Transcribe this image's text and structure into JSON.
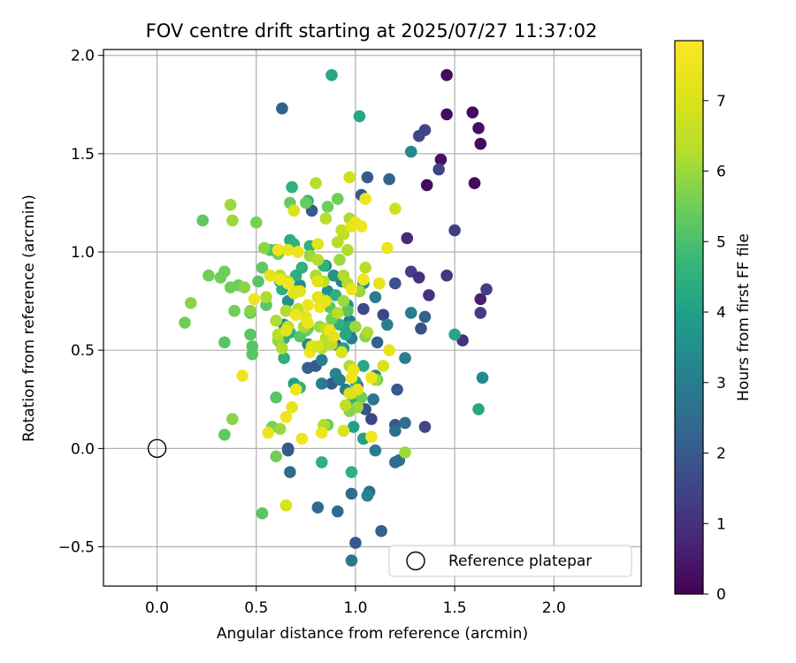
{
  "chart_data": {
    "type": "scatter",
    "title": "FOV centre drift starting at 2025/07/27 11:37:02",
    "xlabel": "Angular distance from reference (arcmin)",
    "ylabel": "Rotation from reference (arcmin)",
    "xlim": [
      -0.27,
      2.44
    ],
    "ylim": [
      -0.7,
      2.03
    ],
    "x_ticks": [
      0.0,
      0.5,
      1.0,
      1.5,
      2.0
    ],
    "x_tick_labels": [
      "0.0",
      "0.5",
      "1.0",
      "1.5",
      "2.0"
    ],
    "y_ticks": [
      -0.5,
      0.0,
      0.5,
      1.0,
      1.5,
      2.0
    ],
    "y_tick_labels": [
      "−0.5",
      "0.0",
      "0.5",
      "1.0",
      "1.5",
      "2.0"
    ],
    "grid": true,
    "colormap": "viridis",
    "colorbar": {
      "label": "Hours from first FF file",
      "min": 0,
      "max": 7.85,
      "ticks": [
        0,
        1,
        2,
        3,
        4,
        5,
        6,
        7
      ],
      "tick_labels": [
        "0",
        "1",
        "2",
        "3",
        "4",
        "5",
        "6",
        "7"
      ]
    },
    "legend": {
      "placement": "lower-right",
      "entries": [
        "Reference platepar"
      ]
    },
    "reference_point": {
      "x": 0.0,
      "y": 0.0
    },
    "points": [
      [
        1.46,
        1.9,
        0.2
      ],
      [
        1.59,
        1.71,
        0.2
      ],
      [
        1.46,
        1.7,
        0.2
      ],
      [
        1.62,
        1.63,
        0.3
      ],
      [
        1.63,
        1.55,
        0.2
      ],
      [
        1.43,
        1.47,
        0.3
      ],
      [
        1.36,
        1.34,
        0.2
      ],
      [
        1.6,
        1.35,
        0.2
      ],
      [
        1.42,
        1.42,
        1.5
      ],
      [
        1.35,
        1.62,
        1.5
      ],
      [
        1.32,
        1.59,
        1.5
      ],
      [
        1.5,
        1.11,
        1.3
      ],
      [
        1.26,
        1.07,
        0.8
      ],
      [
        1.28,
        0.9,
        1.3
      ],
      [
        1.46,
        0.88,
        1.2
      ],
      [
        1.32,
        0.87,
        1.0
      ],
      [
        1.63,
        0.76,
        0.6
      ],
      [
        1.66,
        0.81,
        1.3
      ],
      [
        1.37,
        0.78,
        1.0
      ],
      [
        1.63,
        0.69,
        1.3
      ],
      [
        1.35,
        0.67,
        2.2
      ],
      [
        1.33,
        0.61,
        1.8
      ],
      [
        1.54,
        0.55,
        1.0
      ],
      [
        1.35,
        0.11,
        1.5
      ],
      [
        0.63,
        1.73,
        2.2
      ],
      [
        1.06,
        1.38,
        2.0
      ],
      [
        1.17,
        1.37,
        2.2
      ],
      [
        1.03,
        1.29,
        2.0
      ],
      [
        0.78,
        1.21,
        2.0
      ],
      [
        1.2,
        0.84,
        1.8
      ],
      [
        1.14,
        0.68,
        1.5
      ],
      [
        1.04,
        0.71,
        1.6
      ],
      [
        0.98,
        0.61,
        2.0
      ],
      [
        1.11,
        0.54,
        2.2
      ],
      [
        0.9,
        0.53,
        2.0
      ],
      [
        0.76,
        0.41,
        2.2
      ],
      [
        0.8,
        0.42,
        2.0
      ],
      [
        0.88,
        0.33,
        2.0
      ],
      [
        1.01,
        0.32,
        1.9
      ],
      [
        1.21,
        0.3,
        2.0
      ],
      [
        1.05,
        0.2,
        1.8
      ],
      [
        1.08,
        0.15,
        1.5
      ],
      [
        1.2,
        0.12,
        2.0
      ],
      [
        1.2,
        0.09,
        2.5
      ],
      [
        0.66,
        0.0,
        2.0
      ],
      [
        0.66,
        -0.01,
        2.0
      ],
      [
        1.04,
        0.05,
        2.5
      ],
      [
        0.81,
        -0.3,
        2.5
      ],
      [
        0.91,
        -0.32,
        2.5
      ],
      [
        0.98,
        -0.23,
        2.5
      ],
      [
        1.07,
        -0.22,
        2.5
      ],
      [
        1.0,
        -0.48,
        2.0
      ],
      [
        1.13,
        -0.42,
        2.2
      ],
      [
        0.98,
        -0.57,
        2.8
      ],
      [
        0.67,
        -0.12,
        2.5
      ],
      [
        1.2,
        -0.07,
        2.5
      ],
      [
        1.22,
        -0.06,
        2.5
      ],
      [
        1.28,
        1.51,
        3.3
      ],
      [
        1.28,
        0.69,
        3.0
      ],
      [
        1.25,
        0.46,
        3.0
      ],
      [
        1.64,
        0.36,
        3.3
      ],
      [
        1.16,
        0.63,
        3.0
      ],
      [
        1.1,
        0.77,
        3.0
      ],
      [
        1.02,
        0.8,
        3.2
      ],
      [
        0.93,
        0.85,
        3.0
      ],
      [
        0.85,
        0.93,
        3.2
      ],
      [
        0.97,
        0.65,
        3.0
      ],
      [
        0.98,
        0.56,
        3.0
      ],
      [
        0.83,
        0.45,
        3.0
      ],
      [
        0.9,
        0.38,
        3.2
      ],
      [
        0.92,
        0.35,
        3.0
      ],
      [
        0.83,
        0.33,
        3.0
      ],
      [
        0.95,
        0.3,
        3.0
      ],
      [
        1.1,
        0.37,
        3.0
      ],
      [
        1.09,
        0.25,
        2.8
      ],
      [
        1.25,
        0.13,
        2.6
      ],
      [
        1.06,
        -0.24,
        3.2
      ],
      [
        1.1,
        -0.01,
        3.0
      ],
      [
        0.76,
        0.53,
        3.5
      ],
      [
        0.64,
        0.63,
        3.5
      ],
      [
        0.72,
        0.83,
        3.5
      ],
      [
        0.62,
        0.85,
        3.5
      ],
      [
        0.66,
        0.75,
        3.6
      ],
      [
        0.77,
        0.51,
        3.2
      ],
      [
        0.86,
        0.8,
        3.5
      ],
      [
        0.89,
        0.88,
        3.6
      ],
      [
        0.96,
        0.73,
        3.5
      ],
      [
        1.04,
        0.84,
        3.5
      ],
      [
        0.88,
        1.9,
        4.2
      ],
      [
        1.02,
        1.69,
        4.2
      ],
      [
        1.5,
        0.58,
        4.2
      ],
      [
        1.62,
        0.2,
        4.2
      ],
      [
        0.68,
        1.33,
        4.5
      ],
      [
        0.76,
        1.26,
        4.6
      ],
      [
        0.67,
        1.06,
        4.4
      ],
      [
        0.69,
        1.04,
        4.5
      ],
      [
        0.77,
        1.03,
        4.5
      ],
      [
        0.6,
        1.01,
        4.5
      ],
      [
        0.84,
        0.93,
        4.5
      ],
      [
        0.73,
        0.92,
        4.5
      ],
      [
        0.7,
        0.88,
        4.4
      ],
      [
        0.63,
        0.81,
        4.5
      ],
      [
        0.64,
        0.56,
        4.5
      ],
      [
        0.62,
        0.54,
        4.5
      ],
      [
        0.67,
        0.59,
        4.5
      ],
      [
        0.64,
        0.46,
        4.5
      ],
      [
        0.92,
        0.63,
        4.5
      ],
      [
        0.97,
        0.62,
        4.2
      ],
      [
        0.95,
        0.58,
        4.2
      ],
      [
        0.94,
        0.51,
        4.0
      ],
      [
        1.04,
        0.42,
        4.2
      ],
      [
        1.0,
        0.34,
        4.0
      ],
      [
        0.69,
        0.33,
        4.0
      ],
      [
        0.72,
        0.31,
        4.5
      ],
      [
        0.98,
        0.23,
        4.5
      ],
      [
        0.99,
        0.11,
        4.0
      ],
      [
        1.04,
        0.05,
        4.0
      ],
      [
        0.98,
        -0.12,
        4.5
      ],
      [
        0.83,
        -0.07,
        4.5
      ],
      [
        0.84,
        0.76,
        4.5
      ],
      [
        0.9,
        0.78,
        4.5
      ],
      [
        0.53,
        -0.33,
        5.2
      ],
      [
        0.23,
        1.16,
        5.3
      ],
      [
        0.67,
        1.25,
        5.4
      ],
      [
        0.75,
        1.25,
        5.4
      ],
      [
        0.86,
        1.23,
        5.5
      ],
      [
        0.91,
        1.27,
        5.5
      ],
      [
        0.57,
        1.01,
        5.0
      ],
      [
        0.61,
        0.99,
        5.5
      ],
      [
        0.6,
        1.01,
        5.0
      ],
      [
        0.53,
        0.92,
        5.3
      ],
      [
        0.5,
        1.15,
        5.6
      ],
      [
        0.51,
        0.85,
        5.2
      ],
      [
        0.55,
        0.73,
        5.2
      ],
      [
        0.47,
        0.69,
        5.2
      ],
      [
        0.39,
        0.7,
        5.5
      ],
      [
        0.34,
        0.54,
        5.2
      ],
      [
        0.47,
        0.58,
        5.2
      ],
      [
        0.48,
        0.52,
        5.2
      ],
      [
        0.48,
        0.48,
        5.2
      ],
      [
        0.6,
        0.26,
        5.2
      ],
      [
        0.34,
        0.07,
        5.3
      ],
      [
        0.58,
        0.11,
        5.6
      ],
      [
        0.6,
        -0.04,
        5.5
      ],
      [
        0.14,
        0.64,
        5.5
      ],
      [
        0.26,
        0.88,
        5.5
      ],
      [
        0.37,
        0.82,
        5.5
      ],
      [
        0.32,
        0.87,
        5.5
      ],
      [
        0.34,
        0.9,
        5.5
      ],
      [
        0.41,
        0.83,
        5.5
      ],
      [
        0.44,
        0.82,
        5.8
      ],
      [
        0.72,
        0.57,
        5.2
      ],
      [
        0.75,
        0.6,
        5.3
      ],
      [
        0.83,
        0.52,
        5.3
      ],
      [
        0.76,
        0.61,
        5.5
      ],
      [
        0.87,
        0.72,
        5.2
      ],
      [
        0.88,
        0.66,
        5.5
      ],
      [
        0.96,
        0.7,
        5.2
      ],
      [
        1.05,
        0.57,
        5.8
      ],
      [
        1.03,
        0.26,
        5.5
      ],
      [
        1.11,
        0.35,
        5.5
      ],
      [
        1.01,
        0.21,
        6.0
      ],
      [
        0.86,
        0.12,
        5.5
      ],
      [
        0.97,
        0.19,
        5.8
      ],
      [
        1.25,
        -0.02,
        6.0
      ],
      [
        0.37,
        1.24,
        6.0
      ],
      [
        0.38,
        1.16,
        6.0
      ],
      [
        0.54,
        1.02,
        5.8
      ],
      [
        0.61,
        0.55,
        6.0
      ],
      [
        0.63,
        0.51,
        6.2
      ],
      [
        0.65,
        0.7,
        6.2
      ],
      [
        0.74,
        0.62,
        6.2
      ],
      [
        0.8,
        1.35,
        6.3
      ],
      [
        0.85,
        1.17,
        6.3
      ],
      [
        0.97,
        1.17,
        6.2
      ],
      [
        0.93,
        1.11,
        6.5
      ],
      [
        0.94,
        1.09,
        6.5
      ],
      [
        0.96,
        1.01,
        6.2
      ],
      [
        0.91,
        1.05,
        6.3
      ],
      [
        0.92,
        0.96,
        6.0
      ],
      [
        0.77,
        0.98,
        6.0
      ],
      [
        0.81,
        0.96,
        6.3
      ],
      [
        0.8,
        0.88,
        6.2
      ],
      [
        0.94,
        0.88,
        6.2
      ],
      [
        0.84,
        0.85,
        6.5
      ],
      [
        0.96,
        0.84,
        6.3
      ],
      [
        1.05,
        0.92,
        6.3
      ],
      [
        0.94,
        0.75,
        6.0
      ],
      [
        1.02,
        0.8,
        6.0
      ],
      [
        0.91,
        0.69,
        6.3
      ],
      [
        0.86,
        0.6,
        6.3
      ],
      [
        0.82,
        0.62,
        6.0
      ],
      [
        1.0,
        0.62,
        6.0
      ],
      [
        0.85,
        0.56,
        6.3
      ],
      [
        0.61,
        0.58,
        6.3
      ],
      [
        0.66,
        0.62,
        6.5
      ],
      [
        0.6,
        0.65,
        6.2
      ],
      [
        0.71,
        0.71,
        6.3
      ],
      [
        0.7,
        0.8,
        6.3
      ],
      [
        0.55,
        0.77,
        6.2
      ],
      [
        0.66,
        0.85,
        6.5
      ],
      [
        0.62,
        0.88,
        6.3
      ],
      [
        0.71,
        1.0,
        6.3
      ],
      [
        0.17,
        0.74,
        5.8
      ],
      [
        0.47,
        0.7,
        5.8
      ],
      [
        0.38,
        0.15,
        5.8
      ],
      [
        0.83,
        0.51,
        6.3
      ],
      [
        0.88,
        0.53,
        6.5
      ],
      [
        0.85,
        0.61,
        6.5
      ],
      [
        0.98,
        0.28,
        6.5
      ],
      [
        0.84,
        0.12,
        6.2
      ],
      [
        0.95,
        0.22,
        6.5
      ],
      [
        1.06,
        0.59,
        6.2
      ],
      [
        1.1,
        0.35,
        6.0
      ],
      [
        0.97,
        0.42,
        6.2
      ],
      [
        0.62,
        0.1,
        6.0
      ],
      [
        1.2,
        1.22,
        6.8
      ],
      [
        0.97,
        1.38,
        6.8
      ],
      [
        0.69,
        1.21,
        7.0
      ],
      [
        1.05,
        1.27,
        7.5
      ],
      [
        1.0,
        1.15,
        7.5
      ],
      [
        1.03,
        1.13,
        7.5
      ],
      [
        1.16,
        1.02,
        7.5
      ],
      [
        1.04,
        0.86,
        7.5
      ],
      [
        1.12,
        0.84,
        7.2
      ],
      [
        0.98,
        0.81,
        7.5
      ],
      [
        0.81,
        0.85,
        7.2
      ],
      [
        0.81,
        0.77,
        7.2
      ],
      [
        0.85,
        0.75,
        7.2
      ],
      [
        0.76,
        0.73,
        7.5
      ],
      [
        0.82,
        0.72,
        7.5
      ],
      [
        0.72,
        0.8,
        7.2
      ],
      [
        0.69,
        0.79,
        7.2
      ],
      [
        0.66,
        0.84,
        7.5
      ],
      [
        0.62,
        0.86,
        7.5
      ],
      [
        0.57,
        0.88,
        7.3
      ],
      [
        0.61,
        1.01,
        7.5
      ],
      [
        0.66,
        1.01,
        7.4
      ],
      [
        0.71,
        1.0,
        7.5
      ],
      [
        0.81,
        1.04,
        7.2
      ],
      [
        0.98,
        1.13,
        7.3
      ],
      [
        0.7,
        0.68,
        7.5
      ],
      [
        0.75,
        0.67,
        7.2
      ],
      [
        0.65,
        0.6,
        7.2
      ],
      [
        0.76,
        0.64,
        7.5
      ],
      [
        0.77,
        0.49,
        7.5
      ],
      [
        0.78,
        0.52,
        7.2
      ],
      [
        0.87,
        0.6,
        7.5
      ],
      [
        0.89,
        0.57,
        7.2
      ],
      [
        0.81,
        0.52,
        7.0
      ],
      [
        0.93,
        0.49,
        7.0
      ],
      [
        0.98,
        0.36,
        7.5
      ],
      [
        0.99,
        0.4,
        7.5
      ],
      [
        1.08,
        0.36,
        7.5
      ],
      [
        1.14,
        0.42,
        7.0
      ],
      [
        1.17,
        0.5,
        7.3
      ],
      [
        1.01,
        0.3,
        7.3
      ],
      [
        0.97,
        0.28,
        7.0
      ],
      [
        0.43,
        0.37,
        7.5
      ],
      [
        0.49,
        0.76,
        7.5
      ],
      [
        0.56,
        0.08,
        7.5
      ],
      [
        0.73,
        0.05,
        7.5
      ],
      [
        0.83,
        0.08,
        7.5
      ],
      [
        0.65,
        0.16,
        7.5
      ],
      [
        0.68,
        0.21,
        7.3
      ],
      [
        0.7,
        0.3,
        7.5
      ],
      [
        0.65,
        -0.29,
        7.0
      ],
      [
        0.94,
        0.09,
        7.0
      ],
      [
        1.08,
        0.06,
        7.5
      ]
    ]
  }
}
